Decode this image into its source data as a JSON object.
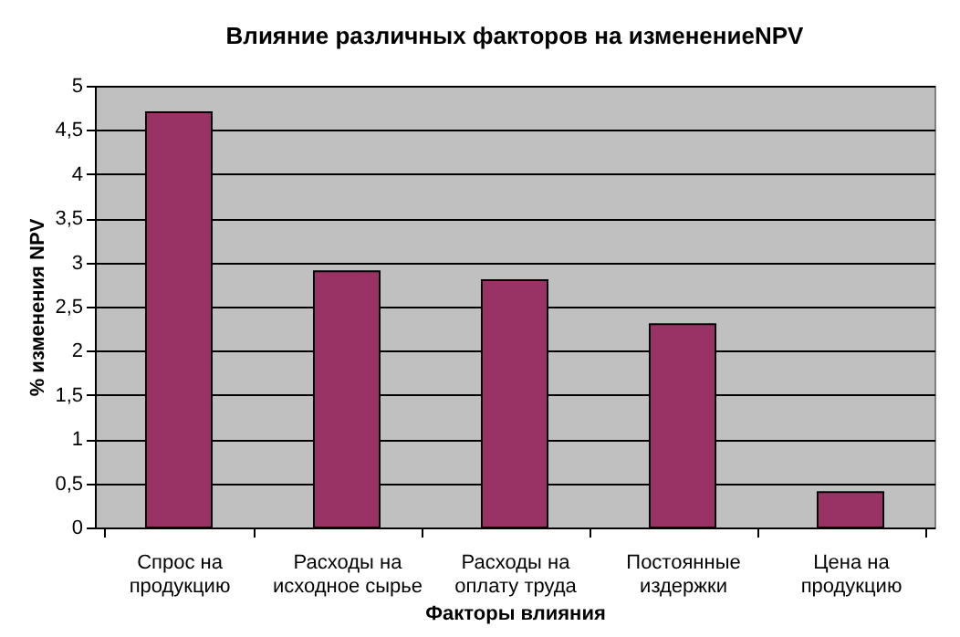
{
  "chart_data": {
    "type": "bar",
    "title": "Влияние различных факторов на изменениеNPV",
    "xlabel": "Факторы влияния",
    "ylabel": "% изменения NPV",
    "categories": [
      "Спрос на продукцию",
      "Расходы на исходное сырье",
      "Расходы на оплату труда",
      "Постоянные издержки",
      "Цена на продукцию"
    ],
    "values": [
      4.7,
      2.9,
      2.8,
      2.3,
      0.4
    ],
    "color": "#993366",
    "ylim": [
      0,
      5
    ],
    "yticks": [
      0,
      {
        "value": 0.5,
        "label": "0,5"
      },
      1,
      {
        "value": 1.5,
        "label": "1,5"
      },
      2,
      {
        "value": 2.5,
        "label": "2,5"
      },
      3,
      {
        "value": 3.5,
        "label": "3,5"
      },
      4,
      {
        "value": 4.5,
        "label": "4,5"
      },
      5
    ],
    "grid": "y"
  }
}
